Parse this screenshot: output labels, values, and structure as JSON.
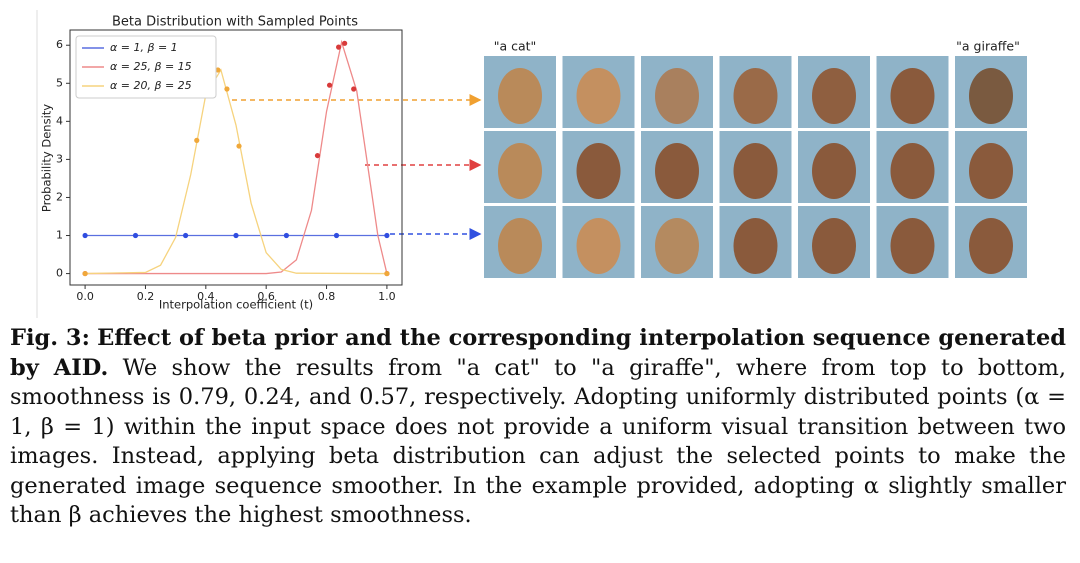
{
  "chart_data": {
    "type": "line",
    "title": "Beta Distribution with Sampled Points",
    "x_label": "Interpolation coefficient (t)",
    "y_label": "Probability Density",
    "xlim": [
      -0.05,
      1.05
    ],
    "ylim": [
      -0.3,
      6.4
    ],
    "xticks": [
      {
        "value": 0,
        "label": "0.0"
      },
      0.2,
      0.4,
      0.6,
      0.8,
      {
        "value": 1,
        "label": "1.0"
      }
    ],
    "yticks": [
      0,
      1,
      2,
      3,
      4,
      5,
      6
    ],
    "grid": false,
    "legend": "upper left",
    "series": [
      {
        "name": "α = 1, β = 1",
        "color": "#5a6fe0",
        "marker_color": "#2f4de0",
        "x": [
          0,
          1
        ],
        "values": [
          1,
          1
        ],
        "samples": {
          "x": [
            0,
            0.167,
            0.333,
            0.5,
            0.667,
            0.833,
            1.0
          ],
          "values": [
            1,
            1,
            1,
            1,
            1,
            1,
            1
          ]
        }
      },
      {
        "name": "α = 25, β = 15",
        "color": "#ee8a8a",
        "marker_color": "#d83a3a",
        "x": [
          0,
          0.6,
          0.65,
          0.7,
          0.75,
          0.8,
          0.85,
          0.9,
          0.95,
          0.97,
          1.0
        ],
        "values": [
          0,
          0,
          0.04,
          0.36,
          1.66,
          4.26,
          6.08,
          4.8,
          2.1,
          1.0,
          0
        ],
        "samples": {
          "x": [
            0,
            0.77,
            0.81,
            0.84,
            0.86,
            0.89,
            1.0
          ],
          "values": [
            0,
            3.1,
            4.95,
            5.95,
            6.05,
            4.85,
            0
          ]
        }
      },
      {
        "name": "α = 20, β = 25",
        "color": "#f6d37e",
        "marker_color": "#f0a83a",
        "x": [
          0,
          0.2,
          0.25,
          0.3,
          0.35,
          0.4,
          0.45,
          0.5,
          0.55,
          0.6,
          0.65,
          0.7,
          1.0
        ],
        "values": [
          0,
          0.03,
          0.22,
          0.95,
          2.6,
          4.7,
          5.35,
          3.9,
          1.85,
          0.55,
          0.11,
          0.01,
          0
        ],
        "samples": {
          "x": [
            0,
            0.37,
            0.41,
            0.44,
            0.47,
            0.51,
            1.0
          ],
          "values": [
            0,
            3.5,
            4.95,
            5.35,
            4.85,
            3.35,
            0
          ]
        }
      }
    ]
  },
  "images": {
    "start_label": "\"a cat\"",
    "end_label": "\"a giraffe\""
  },
  "caption": {
    "label": "Fig. 3:",
    "bold": "Effect of beta prior and the corresponding interpolation sequence generated by AID.",
    "text": "We show the results from \"a cat\" to \"a giraffe\", where from top to bottom, smoothness is 0.79, 0.24, and 0.57, respectively. Adopting uniformly distributed points (α = 1, β = 1) within the input space does not provide a uniform visual transition between two images. Instead, applying beta distribution can adjust the selected points to make the generated image sequence smoother. In the example provided, adopting α slightly smaller than β achieves the highest smoothness."
  }
}
